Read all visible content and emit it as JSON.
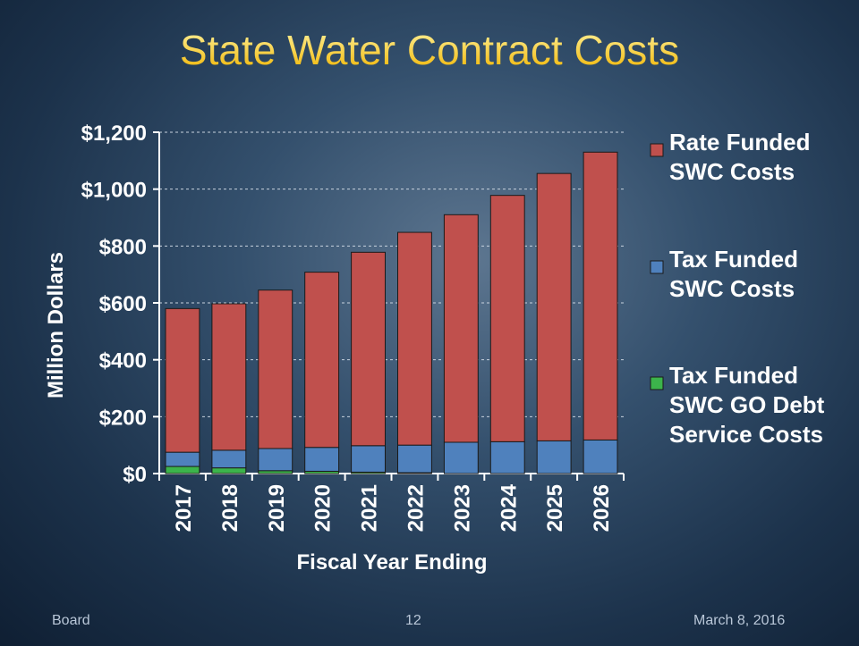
{
  "chart_data": {
    "type": "stacked_bar",
    "title": "State Water Contract Costs",
    "x_label": "Fiscal Year Ending",
    "y_label": "Million Dollars",
    "categories": [
      "2017",
      "2018",
      "2019",
      "2020",
      "2021",
      "2022",
      "2023",
      "2024",
      "2025",
      "2026"
    ],
    "series": [
      {
        "name": "Tax Funded SWC GO Debt Service Costs",
        "color": "#3cb44b",
        "values": [
          25,
          20,
          10,
          8,
          5,
          3,
          0,
          0,
          0,
          0
        ]
      },
      {
        "name": "Tax Funded SWC Costs",
        "color": "#4f81bd",
        "values": [
          50,
          62,
          78,
          84,
          93,
          97,
          110,
          112,
          115,
          118
        ]
      },
      {
        "name": "Rate Funded SWC Costs",
        "color": "#c0504d",
        "values": [
          505,
          515,
          557,
          616,
          680,
          748,
          800,
          866,
          940,
          1012
        ]
      }
    ],
    "ylim": [
      0,
      1200
    ],
    "yticks": [
      {
        "value": 0,
        "label": "$0"
      },
      {
        "value": 200,
        "label": "$200"
      },
      {
        "value": 400,
        "label": "$400"
      },
      {
        "value": 600,
        "label": "$600"
      },
      {
        "value": 800,
        "label": "$800"
      },
      {
        "value": 1000,
        "label": "$1,000"
      },
      {
        "value": 1200,
        "label": "$1,200"
      }
    ],
    "grid": true,
    "legend": "right"
  },
  "footer": {
    "left": "Board",
    "center": "12",
    "right": "March 8, 2016"
  }
}
